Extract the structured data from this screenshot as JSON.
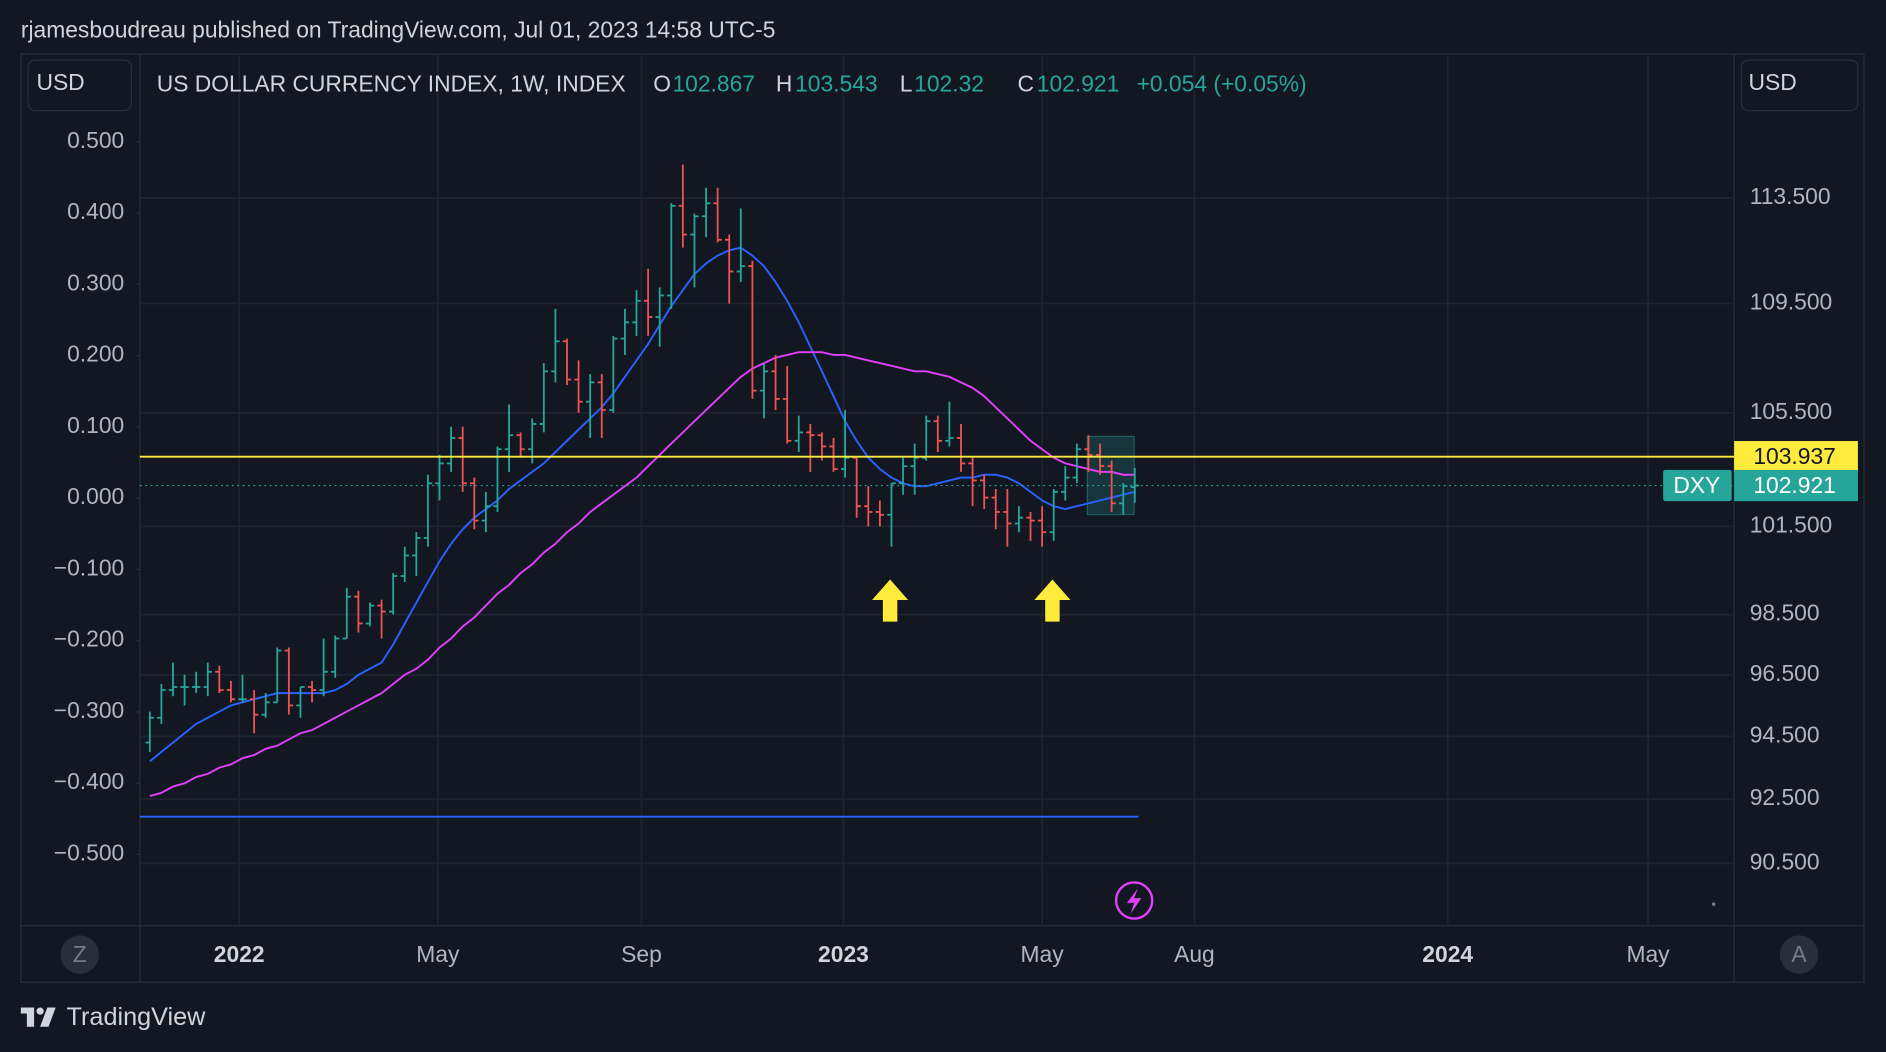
{
  "header": "rjamesboudreau published on TradingView.com, Jul 01, 2023 14:58 UTC-5",
  "footer": "TradingView",
  "chart_data": {
    "type": "ohlc",
    "title": "US DOLLAR CURRENCY INDEX, 1W, INDEX",
    "symbol": "DXY",
    "currency": "USD",
    "ohlc_labels": [
      "O",
      "H",
      "L",
      "C"
    ],
    "change_label": "+0.054 (+0.05%)",
    "scale_buttons": [
      "Z",
      "A"
    ],
    "up_color": "#26a69a",
    "down_color": "#ef5350",
    "log_scale": true,
    "grid": true,
    "x": [
      "2021-11-08",
      "2021-11-15",
      "2021-11-22",
      "2021-11-29",
      "2021-12-06",
      "2021-12-13",
      "2021-12-20",
      "2021-12-27",
      "2022-01-03",
      "2022-01-10",
      "2022-01-17",
      "2022-01-24",
      "2022-01-31",
      "2022-02-07",
      "2022-02-14",
      "2022-02-21",
      "2022-02-28",
      "2022-03-07",
      "2022-03-14",
      "2022-03-21",
      "2022-03-28",
      "2022-04-04",
      "2022-04-11",
      "2022-04-18",
      "2022-04-25",
      "2022-05-02",
      "2022-05-09",
      "2022-05-16",
      "2022-05-23",
      "2022-05-30",
      "2022-06-06",
      "2022-06-13",
      "2022-06-20",
      "2022-06-27",
      "2022-07-04",
      "2022-07-11",
      "2022-07-18",
      "2022-07-25",
      "2022-08-01",
      "2022-08-08",
      "2022-08-15",
      "2022-08-22",
      "2022-08-29",
      "2022-09-05",
      "2022-09-12",
      "2022-09-19",
      "2022-09-26",
      "2022-10-03",
      "2022-10-10",
      "2022-10-17",
      "2022-10-24",
      "2022-10-31",
      "2022-11-07",
      "2022-11-14",
      "2022-11-21",
      "2022-11-28",
      "2022-12-05",
      "2022-12-12",
      "2022-12-19",
      "2022-12-26",
      "2023-01-02",
      "2023-01-09",
      "2023-01-16",
      "2023-01-23",
      "2023-01-30",
      "2023-02-06",
      "2023-02-13",
      "2023-02-20",
      "2023-02-27",
      "2023-03-06",
      "2023-03-13",
      "2023-03-20",
      "2023-03-27",
      "2023-04-03",
      "2023-04-10",
      "2023-04-17",
      "2023-04-24",
      "2023-05-01",
      "2023-05-08",
      "2023-05-15",
      "2023-05-22",
      "2023-05-29",
      "2023-06-05",
      "2023-06-12",
      "2023-06-19",
      "2023-06-26"
    ],
    "open": [
      94.3,
      95.1,
      96.0,
      96.1,
      96.1,
      96.1,
      96.6,
      96.0,
      95.7,
      95.7,
      95.2,
      95.6,
      97.3,
      95.5,
      96.1,
      96.0,
      96.6,
      97.7,
      99.1,
      98.2,
      98.8,
      98.6,
      99.8,
      100.5,
      101.1,
      103.0,
      103.7,
      104.6,
      103.0,
      101.7,
      102.2,
      104.2,
      104.7,
      104.2,
      105.1,
      107.0,
      108.1,
      106.7,
      105.9,
      106.6,
      105.6,
      108.2,
      108.8,
      109.6,
      109.0,
      109.8,
      113.2,
      112.1,
      112.8,
      113.3,
      111.9,
      110.7,
      110.9,
      106.3,
      107.0,
      106.0,
      104.5,
      104.8,
      104.7,
      104.3,
      103.5,
      103.9,
      102.2,
      102.0,
      101.9,
      103.0,
      103.6,
      103.9,
      105.2,
      104.5,
      104.6,
      103.7,
      103.1,
      102.5,
      102.0,
      101.6,
      101.8,
      101.7,
      101.3,
      102.7,
      103.2,
      104.2,
      104.0,
      103.6,
      102.3,
      102.867
    ],
    "high": [
      95.3,
      96.2,
      96.9,
      96.5,
      96.6,
      96.9,
      96.8,
      96.3,
      96.5,
      96.0,
      95.9,
      97.4,
      97.4,
      96.1,
      96.3,
      97.7,
      97.8,
      99.4,
      99.3,
      98.9,
      99.0,
      99.9,
      100.8,
      101.3,
      103.3,
      104.0,
      105.0,
      105.0,
      103.2,
      102.7,
      104.3,
      105.8,
      104.8,
      105.3,
      107.3,
      109.3,
      108.2,
      107.4,
      106.9,
      106.9,
      108.3,
      109.3,
      110.0,
      110.8,
      110.1,
      113.3,
      114.8,
      112.9,
      113.9,
      113.9,
      112.1,
      113.1,
      111.1,
      107.3,
      107.6,
      107.2,
      105.4,
      105.1,
      104.8,
      104.6,
      105.6,
      103.9,
      102.9,
      102.4,
      103.0,
      103.9,
      104.4,
      105.4,
      105.4,
      105.9,
      105.1,
      103.9,
      103.3,
      102.8,
      102.8,
      102.2,
      102.0,
      102.2,
      102.8,
      103.6,
      104.4,
      104.7,
      104.4,
      103.8,
      103.0,
      103.543
    ],
    "low": [
      94.0,
      94.9,
      95.8,
      95.5,
      95.9,
      95.8,
      95.9,
      95.6,
      95.6,
      94.6,
      95.1,
      95.6,
      95.2,
      95.1,
      95.6,
      95.8,
      96.4,
      97.7,
      97.9,
      98.1,
      97.7,
      98.5,
      99.6,
      99.8,
      100.8,
      102.4,
      103.4,
      102.7,
      101.4,
      101.3,
      102.0,
      103.4,
      103.9,
      103.7,
      104.8,
      106.6,
      106.5,
      105.5,
      104.6,
      104.6,
      105.5,
      107.6,
      108.3,
      108.3,
      107.9,
      109.3,
      111.6,
      110.1,
      112.0,
      111.8,
      109.5,
      110.3,
      106.0,
      105.3,
      105.6,
      104.4,
      104.1,
      103.4,
      103.8,
      103.4,
      103.2,
      101.8,
      101.5,
      101.5,
      100.8,
      102.6,
      102.6,
      103.8,
      104.1,
      104.3,
      103.4,
      102.2,
      102.1,
      101.4,
      100.8,
      101.3,
      101.0,
      100.8,
      101.0,
      102.4,
      103.0,
      103.4,
      103.3,
      102.0,
      101.9,
      102.32
    ],
    "close": [
      95.1,
      96.0,
      96.1,
      96.1,
      96.1,
      96.6,
      96.0,
      95.7,
      95.7,
      95.2,
      95.6,
      97.3,
      95.5,
      96.1,
      96.0,
      96.6,
      97.7,
      99.1,
      98.2,
      98.8,
      98.6,
      99.8,
      100.5,
      101.1,
      103.0,
      103.7,
      104.6,
      103.0,
      101.7,
      102.2,
      104.2,
      104.7,
      104.2,
      105.1,
      107.0,
      108.1,
      106.7,
      105.9,
      106.6,
      105.6,
      108.2,
      108.8,
      109.6,
      109.0,
      109.8,
      113.2,
      112.1,
      112.8,
      113.3,
      111.9,
      110.7,
      110.9,
      106.3,
      107.0,
      106.0,
      104.5,
      104.8,
      104.7,
      104.3,
      103.5,
      103.9,
      102.2,
      102.0,
      101.9,
      103.0,
      103.6,
      103.9,
      105.2,
      104.5,
      104.6,
      103.7,
      103.1,
      102.5,
      102.0,
      101.6,
      101.8,
      101.7,
      101.3,
      102.7,
      103.2,
      104.2,
      104.0,
      103.6,
      102.3,
      102.9,
      102.921
    ],
    "moving_averages": [
      {
        "color": "#2962ff",
        "values": [
          93.7,
          94.0,
          94.3,
          94.6,
          94.9,
          95.1,
          95.3,
          95.5,
          95.6,
          95.7,
          95.8,
          95.9,
          95.9,
          95.9,
          95.9,
          95.9,
          96.0,
          96.2,
          96.5,
          96.7,
          96.9,
          97.5,
          98.2,
          98.9,
          99.6,
          100.3,
          100.9,
          101.4,
          101.8,
          102.1,
          102.4,
          102.8,
          103.1,
          103.4,
          103.7,
          104.1,
          104.5,
          104.9,
          105.3,
          105.7,
          106.2,
          106.8,
          107.4,
          108.0,
          108.7,
          109.4,
          110.0,
          110.6,
          111.0,
          111.3,
          111.5,
          111.6,
          111.3,
          110.9,
          110.3,
          109.6,
          108.8,
          107.9,
          107.0,
          106.1,
          105.2,
          104.5,
          103.9,
          103.5,
          103.2,
          103.0,
          102.9,
          102.9,
          103.0,
          103.1,
          103.2,
          103.2,
          103.3,
          103.3,
          103.2,
          103.0,
          102.7,
          102.4,
          102.2,
          102.1,
          102.2,
          102.3,
          102.4,
          102.5,
          102.6,
          102.7
        ]
      },
      {
        "color": "#e040fb",
        "values": [
          92.6,
          92.7,
          92.9,
          93.0,
          93.2,
          93.3,
          93.5,
          93.6,
          93.8,
          93.9,
          94.1,
          94.2,
          94.4,
          94.6,
          94.7,
          94.9,
          95.1,
          95.3,
          95.5,
          95.7,
          95.9,
          96.2,
          96.5,
          96.7,
          97.0,
          97.4,
          97.7,
          98.1,
          98.4,
          98.8,
          99.2,
          99.5,
          99.9,
          100.2,
          100.6,
          100.9,
          101.3,
          101.6,
          102.0,
          102.3,
          102.6,
          102.9,
          103.2,
          103.6,
          104.0,
          104.4,
          104.8,
          105.2,
          105.6,
          106.0,
          106.4,
          106.8,
          107.1,
          107.3,
          107.5,
          107.6,
          107.7,
          107.7,
          107.7,
          107.6,
          107.6,
          107.5,
          107.4,
          107.3,
          107.2,
          107.1,
          107.0,
          107.0,
          106.9,
          106.8,
          106.6,
          106.4,
          106.1,
          105.7,
          105.3,
          104.9,
          104.5,
          104.2,
          103.9,
          103.7,
          103.6,
          103.5,
          103.4,
          103.4,
          103.3,
          103.3
        ]
      }
    ],
    "price_line": {
      "value": 103.937,
      "color": "#ffeb3b"
    },
    "y2_line": {
      "value": -0.447,
      "color": "#2962ff"
    },
    "xlim": [
      "2021-11-02",
      "2024-06-22"
    ],
    "xticks": [
      {
        "value": "2022-01",
        "label": "2022"
      },
      {
        "value": "2022-05",
        "label": "May"
      },
      {
        "value": "2022-09",
        "label": "Sep"
      },
      {
        "value": "2023-01",
        "label": "2023"
      },
      {
        "value": "2023-05",
        "label": "May"
      },
      {
        "value": "2023-08",
        "label": "Aug"
      },
      {
        "value": "2024-01",
        "label": "2024"
      },
      {
        "value": "2024-05",
        "label": "May"
      }
    ],
    "ylim": [
      88.6,
      119.2
    ],
    "yticks": [
      {
        "value": 90.5,
        "label": "90.500"
      },
      {
        "value": 92.5,
        "label": "92.500"
      },
      {
        "value": 94.5,
        "label": "94.500"
      },
      {
        "value": 96.5,
        "label": "96.500"
      },
      {
        "value": 98.5,
        "label": "98.500"
      },
      {
        "value": 101.5,
        "label": "101.500"
      },
      {
        "value": 105.5,
        "label": "105.500"
      },
      {
        "value": 109.5,
        "label": "109.500"
      },
      {
        "value": 113.5,
        "label": "113.500"
      }
    ],
    "y2lim": [
      -0.6,
      0.623
    ],
    "y2ticks": [
      {
        "value": 0.5,
        "label": "0.500"
      },
      {
        "value": 0.4,
        "label": "0.400"
      },
      {
        "value": 0.3,
        "label": "0.300"
      },
      {
        "value": 0.2,
        "label": "0.200"
      },
      {
        "value": 0.1,
        "label": "0.100"
      },
      {
        "value": 0,
        "label": "0.000"
      },
      {
        "value": -0.1,
        "label": "−0.100"
      },
      {
        "value": -0.2,
        "label": "−0.200"
      },
      {
        "value": -0.3,
        "label": "−0.300"
      },
      {
        "value": -0.4,
        "label": "−0.400"
      },
      {
        "value": -0.5,
        "label": "−0.500"
      }
    ]
  }
}
